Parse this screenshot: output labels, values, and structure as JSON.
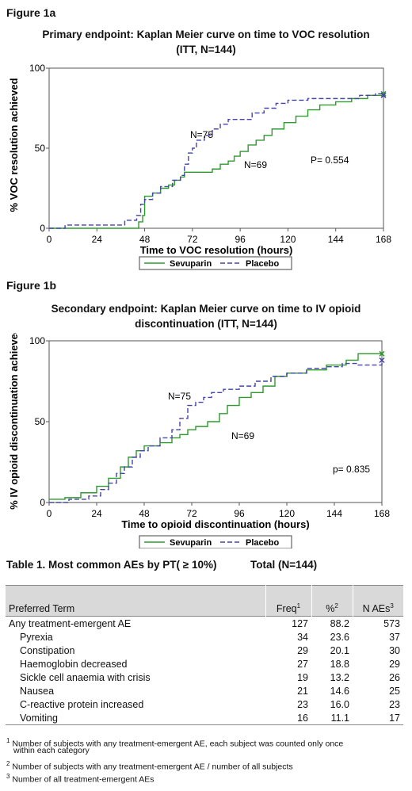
{
  "figure1a": {
    "label": "Figure 1a",
    "title_line1": "Primary endpoint: Kaplan Meier curve on time to VOC resolution",
    "title_line2": "(ITT, N=144)"
  },
  "figure1b": {
    "label": "Figure 1b",
    "title_line1": "Secondary endpoint: Kaplan Meier curve on time to IV opioid",
    "title_line2": "discontinuation (ITT, N=144)"
  },
  "chart_data": [
    {
      "type": "line",
      "title": "Primary endpoint: Kaplan Meier curve on time to VOC resolution (ITT, N=144)",
      "xlabel": "Time to VOC resolution (hours)",
      "ylabel": "% VOC resolution achieved",
      "xlim": [
        0,
        168
      ],
      "ylim": [
        0,
        100
      ],
      "xticks": [
        0,
        24,
        48,
        72,
        96,
        120,
        144,
        168
      ],
      "yticks": [
        0,
        50,
        100
      ],
      "grid": false,
      "legend_position": "bottom",
      "series": [
        {
          "name": "Sevuparin",
          "color": "#2e9a2e",
          "dash": false,
          "points": [
            [
              0,
              0
            ],
            [
              40,
              0
            ],
            [
              45,
              4
            ],
            [
              47,
              8
            ],
            [
              48,
              20
            ],
            [
              52,
              22
            ],
            [
              56,
              25
            ],
            [
              60,
              27
            ],
            [
              63,
              30
            ],
            [
              66,
              32
            ],
            [
              68,
              35
            ],
            [
              72,
              35
            ],
            [
              78,
              35
            ],
            [
              82,
              37
            ],
            [
              86,
              40
            ],
            [
              90,
              42
            ],
            [
              93,
              45
            ],
            [
              96,
              48
            ],
            [
              100,
              52
            ],
            [
              104,
              55
            ],
            [
              108,
              58
            ],
            [
              112,
              62
            ],
            [
              118,
              66
            ],
            [
              124,
              70
            ],
            [
              130,
              74
            ],
            [
              136,
              77
            ],
            [
              144,
              79
            ],
            [
              152,
              81
            ],
            [
              160,
              83
            ],
            [
              168,
              84
            ]
          ]
        },
        {
          "name": "Placebo",
          "color": "#4444aa",
          "dash": true,
          "points": [
            [
              0,
              0
            ],
            [
              8,
              2
            ],
            [
              24,
              2
            ],
            [
              38,
              5
            ],
            [
              44,
              8
            ],
            [
              46,
              15
            ],
            [
              48,
              18
            ],
            [
              52,
              22
            ],
            [
              56,
              26
            ],
            [
              62,
              30
            ],
            [
              66,
              33
            ],
            [
              68,
              40
            ],
            [
              70,
              47
            ],
            [
              72,
              50
            ],
            [
              74,
              55
            ],
            [
              78,
              58
            ],
            [
              82,
              62
            ],
            [
              86,
              65
            ],
            [
              90,
              68
            ],
            [
              96,
              68
            ],
            [
              102,
              72
            ],
            [
              108,
              75
            ],
            [
              114,
              78
            ],
            [
              120,
              80
            ],
            [
              130,
              81
            ],
            [
              144,
              81
            ],
            [
              156,
              83
            ],
            [
              164,
              84
            ],
            [
              168,
              83
            ]
          ]
        }
      ],
      "annotations": [
        "N=75",
        "N=69",
        "P= 0.554"
      ]
    },
    {
      "type": "line",
      "title": "Secondary endpoint: Kaplan Meier curve on time to IV opioid discontinuation (ITT, N=144)",
      "xlabel": "Time to opioid discontinuation (hours)",
      "ylabel": "% IV opioid discontinuation achieved",
      "xlim": [
        0,
        168
      ],
      "ylim": [
        0,
        100
      ],
      "xticks": [
        0,
        24,
        48,
        72,
        96,
        120,
        144,
        168
      ],
      "yticks": [
        0,
        50,
        100
      ],
      "grid": false,
      "legend_position": "bottom",
      "series": [
        {
          "name": "Sevuparin",
          "color": "#2e9a2e",
          "dash": false,
          "points": [
            [
              0,
              2
            ],
            [
              8,
              3
            ],
            [
              16,
              6
            ],
            [
              24,
              10
            ],
            [
              30,
              15
            ],
            [
              36,
              22
            ],
            [
              40,
              28
            ],
            [
              44,
              32
            ],
            [
              48,
              35
            ],
            [
              56,
              37
            ],
            [
              62,
              40
            ],
            [
              66,
              42
            ],
            [
              70,
              45
            ],
            [
              74,
              47
            ],
            [
              80,
              50
            ],
            [
              86,
              55
            ],
            [
              90,
              60
            ],
            [
              96,
              65
            ],
            [
              102,
              68
            ],
            [
              108,
              72
            ],
            [
              114,
              78
            ],
            [
              120,
              80
            ],
            [
              130,
              82
            ],
            [
              140,
              85
            ],
            [
              150,
              88
            ],
            [
              156,
              92
            ],
            [
              168,
              92
            ]
          ]
        },
        {
          "name": "Placebo",
          "color": "#4444aa",
          "dash": true,
          "points": [
            [
              0,
              0
            ],
            [
              10,
              2
            ],
            [
              20,
              4
            ],
            [
              26,
              8
            ],
            [
              30,
              12
            ],
            [
              34,
              18
            ],
            [
              38,
              22
            ],
            [
              42,
              28
            ],
            [
              46,
              32
            ],
            [
              50,
              35
            ],
            [
              56,
              40
            ],
            [
              62,
              45
            ],
            [
              66,
              52
            ],
            [
              70,
              60
            ],
            [
              74,
              62
            ],
            [
              78,
              65
            ],
            [
              82,
              68
            ],
            [
              88,
              70
            ],
            [
              96,
              72
            ],
            [
              104,
              75
            ],
            [
              112,
              78
            ],
            [
              120,
              80
            ],
            [
              130,
              83
            ],
            [
              140,
              84
            ],
            [
              148,
              86
            ],
            [
              156,
              85
            ],
            [
              168,
              88
            ]
          ]
        }
      ],
      "annotations": [
        "N=75",
        "N=69",
        "p= 0.835"
      ]
    }
  ],
  "table": {
    "title": "Table 1. Most common AEs by PT( ≥ 10%)",
    "total": "Total (N=144)",
    "headers": [
      "Preferred Term",
      "Freq",
      "%",
      "N AEs"
    ],
    "header_sups": [
      "1",
      "2",
      "3"
    ],
    "rows": [
      {
        "term": "Any treatment-emergent AE",
        "freq": "127",
        "pct": "88.2",
        "naes": "573",
        "indent": false
      },
      {
        "term": "Pyrexia",
        "freq": "34",
        "pct": "23.6",
        "naes": "37",
        "indent": true
      },
      {
        "term": "Constipation",
        "freq": "29",
        "pct": "20.1",
        "naes": "30",
        "indent": true
      },
      {
        "term": "Haemoglobin decreased",
        "freq": "27",
        "pct": "18.8",
        "naes": "29",
        "indent": true
      },
      {
        "term": "Sickle cell anaemia with crisis",
        "freq": "19",
        "pct": "13.2",
        "naes": "26",
        "indent": true
      },
      {
        "term": "Nausea",
        "freq": "21",
        "pct": "14.6",
        "naes": "25",
        "indent": true
      },
      {
        "term": "C-reactive protein increased",
        "freq": "23",
        "pct": "16.0",
        "naes": "23",
        "indent": true
      },
      {
        "term": "Vomiting",
        "freq": "16",
        "pct": "11.1",
        "naes": "17",
        "indent": true
      }
    ]
  },
  "footnotes": [
    {
      "sup": "1",
      "text": "Number of subjects with any treatment-emergent AE, each subject was counted only once"
    },
    {
      "sup": "",
      "text": "within each category"
    },
    {
      "sup": "2",
      "text": "Number of subjects with any treatment-emergent AE / number of all subjects"
    },
    {
      "sup": "3",
      "text": "Number of all treatment-emergent AEs"
    }
  ]
}
